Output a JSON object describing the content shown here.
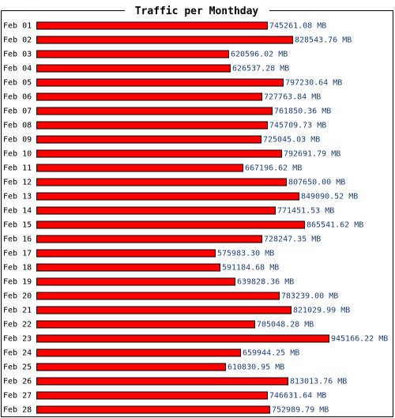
{
  "chart_data": {
    "type": "bar",
    "orientation": "horizontal",
    "title": "Traffic per Monthday",
    "categories": [
      "Feb 01",
      "Feb 02",
      "Feb 03",
      "Feb 04",
      "Feb 05",
      "Feb 06",
      "Feb 07",
      "Feb 08",
      "Feb 09",
      "Feb 10",
      "Feb 11",
      "Feb 12",
      "Feb 13",
      "Feb 14",
      "Feb 15",
      "Feb 16",
      "Feb 17",
      "Feb 18",
      "Feb 19",
      "Feb 20",
      "Feb 21",
      "Feb 22",
      "Feb 23",
      "Feb 24",
      "Feb 25",
      "Feb 26",
      "Feb 27",
      "Feb 28"
    ],
    "values": [
      745261.08,
      828543.76,
      620596.02,
      626537.28,
      797230.64,
      727763.84,
      761850.36,
      745709.73,
      725045.03,
      792691.79,
      667196.62,
      807650.0,
      849090.52,
      771451.53,
      865541.62,
      728247.35,
      575983.3,
      591184.68,
      639828.36,
      783239.0,
      821029.99,
      705048.28,
      945166.22,
      659944.25,
      610830.95,
      813013.76,
      746631.64,
      752989.79
    ],
    "value_labels": [
      "745261.08 MB",
      "828543.76 MB",
      "620596.02 MB",
      "626537.28 MB",
      "797230.64 MB",
      "727763.84 MB",
      "761850.36 MB",
      "745709.73 MB",
      "725045.03 MB",
      "792691.79 MB",
      "667196.62 MB",
      "807650.00 MB",
      "849090.52 MB",
      "771451.53 MB",
      "865541.62 MB",
      "728247.35 MB",
      "575983.30 MB",
      "591184.68 MB",
      "639828.36 MB",
      "783239.00 MB",
      "821029.99 MB",
      "705048.28 MB",
      "945166.22 MB",
      "659944.25 MB",
      "610830.95 MB",
      "813013.76 MB",
      "746631.64 MB",
      "752989.79 MB"
    ],
    "unit": "MB",
    "bar_color": "#ff0000",
    "label_color": "#1f3f7f",
    "xlim": [
      0,
      1070000
    ],
    "grid": false,
    "legend": false
  }
}
